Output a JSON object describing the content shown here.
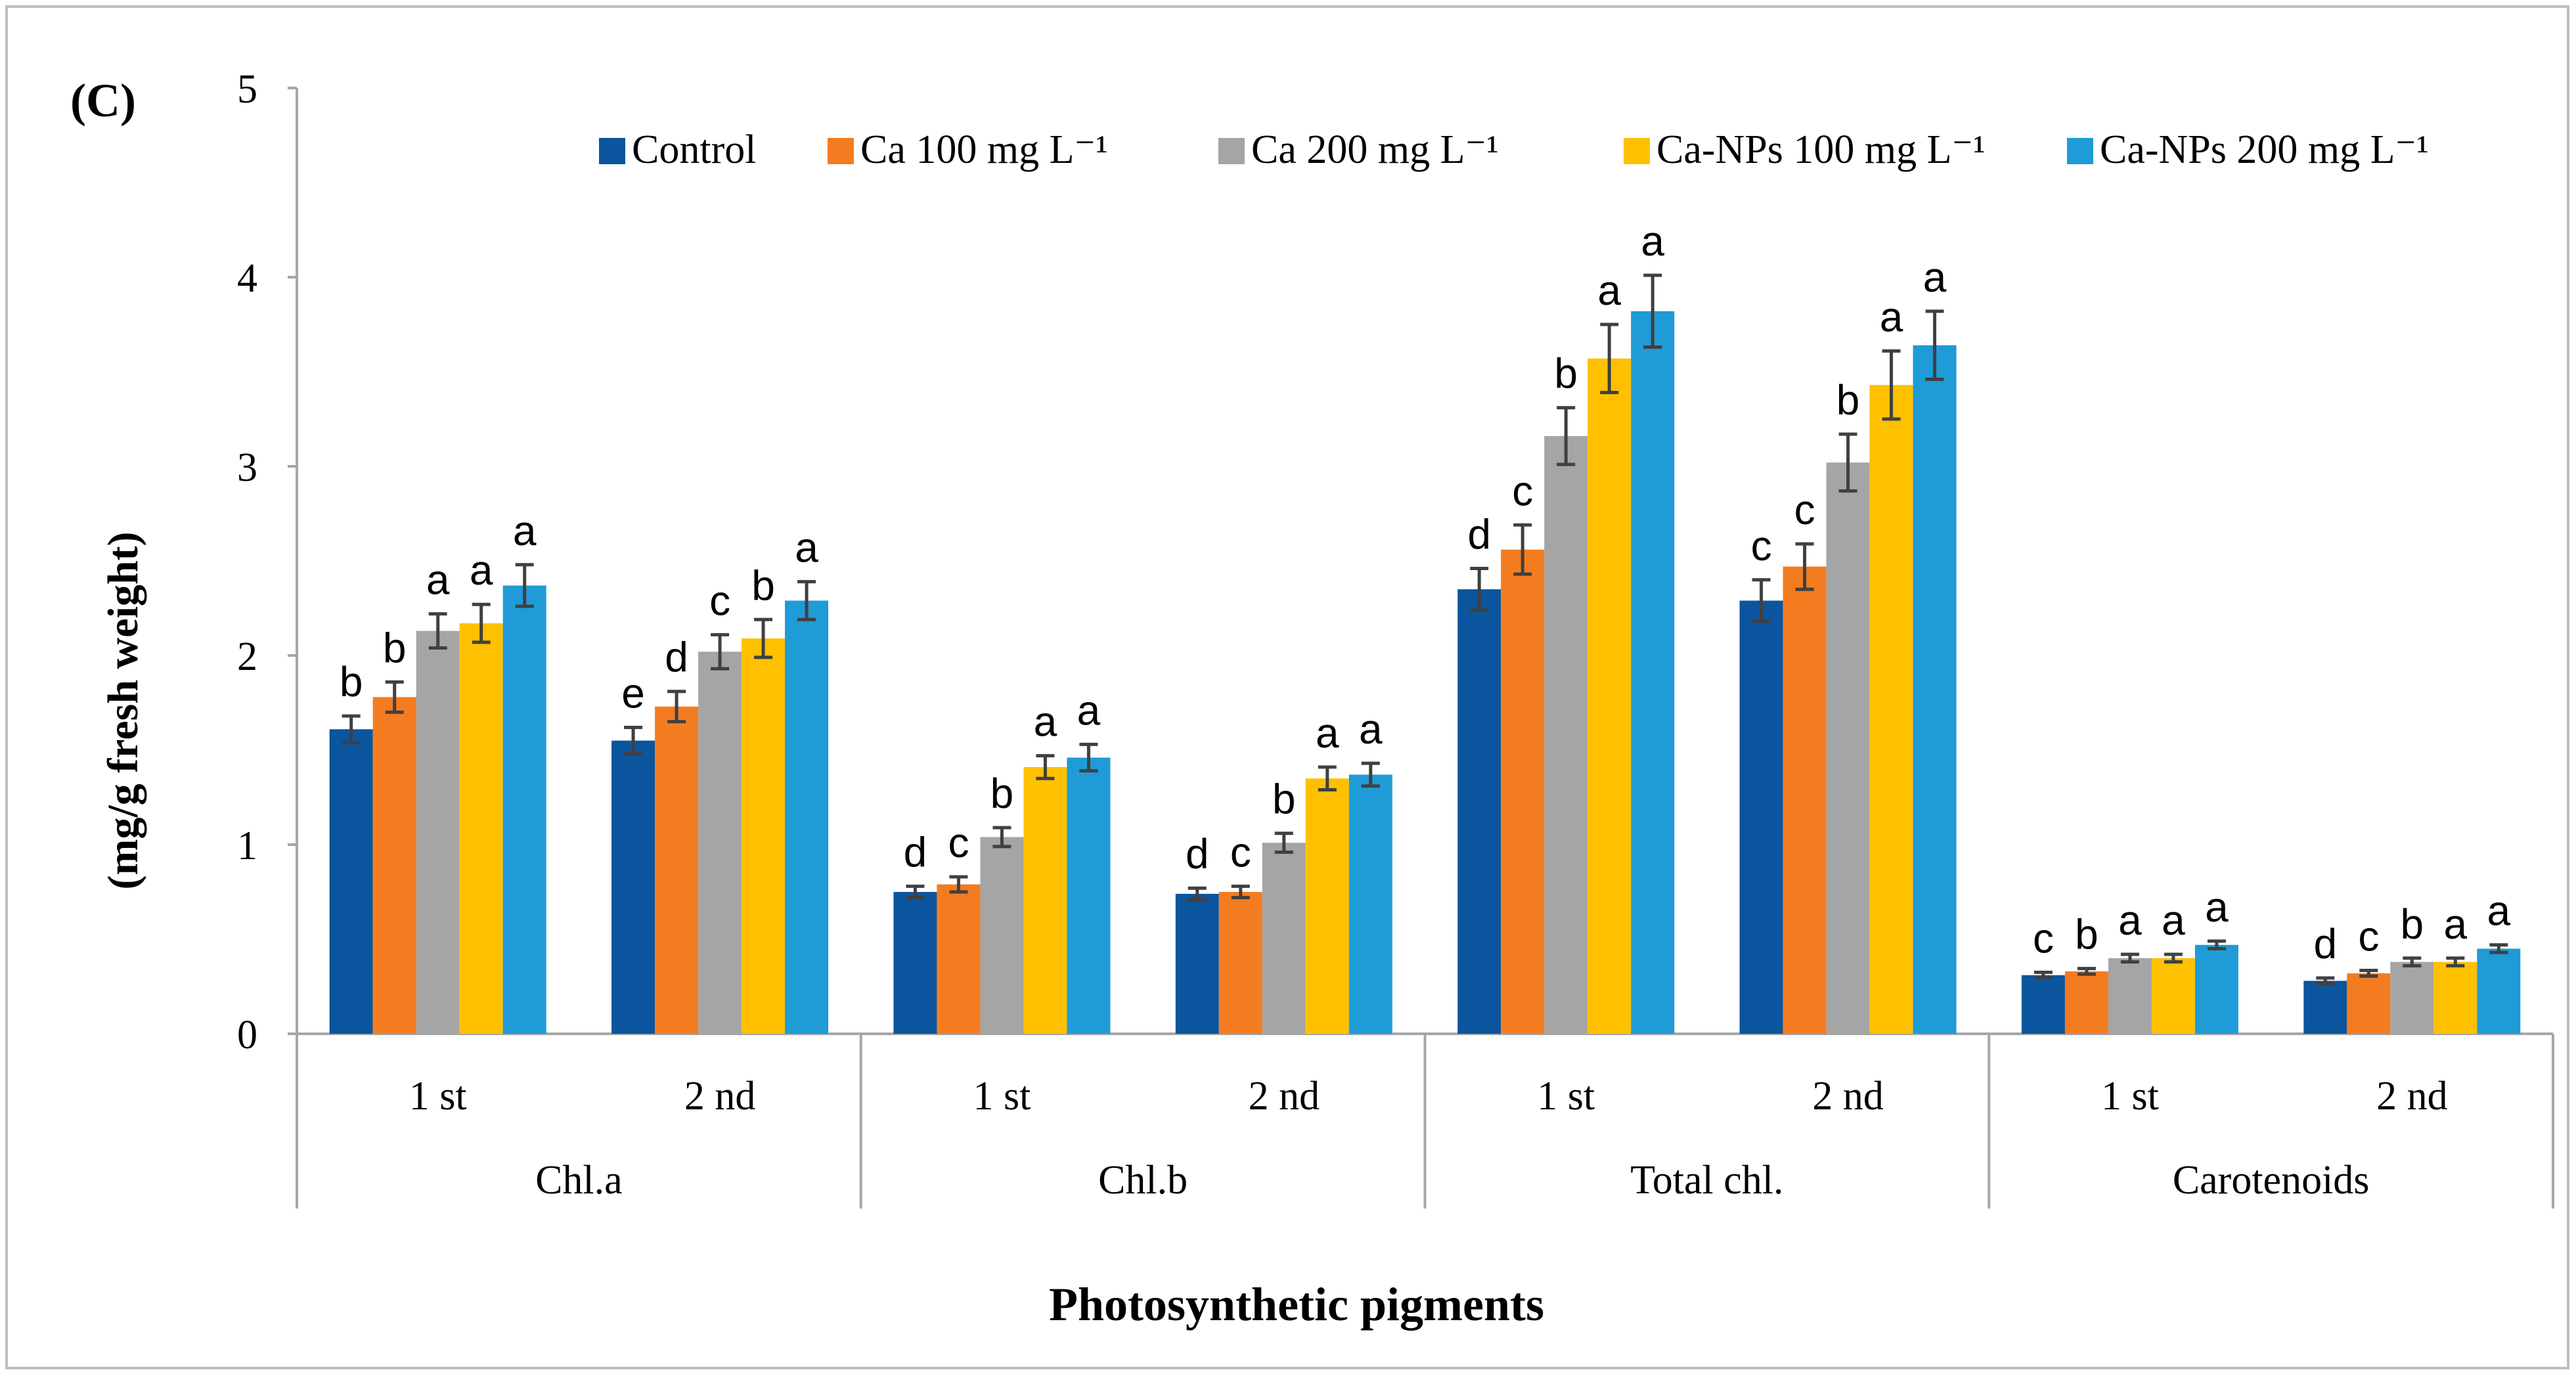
{
  "chart_data": {
    "type": "bar",
    "panel_label": "(C)",
    "title": "",
    "xlabel": "Photosynthetic pigments",
    "ylabel": "(mg/g fresh weight)",
    "ylim": [
      0,
      5
    ],
    "yticks": [
      "0",
      "1",
      "2",
      "3",
      "4",
      "5"
    ],
    "grid": false,
    "legend_position": "top-right",
    "groups": [
      "Chl.a",
      "Chl.b",
      "Total chl.",
      "Carotenoids"
    ],
    "subcategories": [
      "1 st",
      "2 nd"
    ],
    "series": [
      {
        "name": "Control",
        "unit": "",
        "color": "#0b559e",
        "values": [
          1.61,
          1.55,
          0.75,
          0.74,
          2.35,
          2.29,
          0.31,
          0.28
        ],
        "errors": [
          0.07,
          0.07,
          0.03,
          0.03,
          0.11,
          0.11,
          0.015,
          0.015
        ],
        "letters": [
          "b",
          "e",
          "d",
          "d",
          "d",
          "c",
          "c",
          "d"
        ]
      },
      {
        "name": "Ca 100   mg L",
        "unit": "⁻¹",
        "color": "#f47c20",
        "values": [
          1.78,
          1.73,
          0.79,
          0.75,
          2.56,
          2.47,
          0.33,
          0.32
        ],
        "errors": [
          0.08,
          0.08,
          0.04,
          0.03,
          0.13,
          0.12,
          0.015,
          0.015
        ],
        "letters": [
          "b",
          "d",
          "c",
          "c",
          "c",
          "c",
          "b",
          "c"
        ]
      },
      {
        "name": "Ca 200 mg L",
        "unit": "⁻¹",
        "color": "#a5a5a5",
        "values": [
          2.13,
          2.02,
          1.04,
          1.01,
          3.16,
          3.02,
          0.4,
          0.38
        ],
        "errors": [
          0.09,
          0.09,
          0.05,
          0.05,
          0.15,
          0.15,
          0.02,
          0.02
        ],
        "letters": [
          "a",
          "c",
          "b",
          "b",
          "b",
          "b",
          "a",
          "b"
        ]
      },
      {
        "name": "Ca-NPs 100  mg L",
        "unit": "⁻¹",
        "color": "#ffc000",
        "values": [
          2.17,
          2.09,
          1.41,
          1.35,
          3.57,
          3.43,
          0.4,
          0.38
        ],
        "errors": [
          0.1,
          0.1,
          0.06,
          0.06,
          0.18,
          0.18,
          0.02,
          0.02
        ],
        "letters": [
          "a",
          "b",
          "a",
          "a",
          "a",
          "a",
          "a",
          "a"
        ]
      },
      {
        "name": "Ca-NPs 200  mg L",
        "unit": "⁻¹",
        "color": "#1f9bd7",
        "values": [
          2.37,
          2.29,
          1.46,
          1.37,
          3.82,
          3.64,
          0.47,
          0.45
        ],
        "errors": [
          0.11,
          0.1,
          0.07,
          0.06,
          0.19,
          0.18,
          0.02,
          0.02
        ],
        "letters": [
          "a",
          "a",
          "a",
          "a",
          "a",
          "a",
          "a",
          "a"
        ]
      }
    ]
  }
}
